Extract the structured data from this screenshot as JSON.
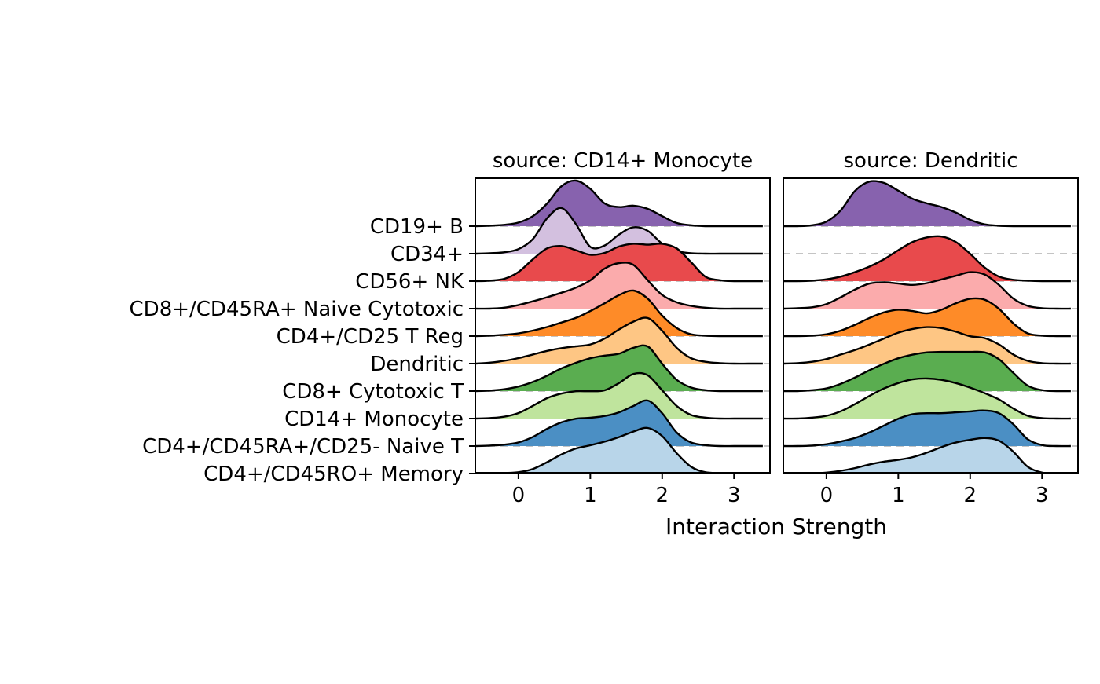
{
  "chart_data": {
    "type": "ridgeline",
    "xlabel": "Interaction Strength",
    "xlim": [
      -0.6,
      3.5
    ],
    "xticks": [
      0,
      1,
      2,
      3
    ],
    "categories": [
      "CD19+ B",
      "CD34+",
      "CD56+ NK",
      "CD8+/CD45RA+ Naive Cytotoxic",
      "CD4+/CD25 T Reg",
      "Dendritic",
      "CD8+ Cytotoxic T",
      "CD14+ Monocyte",
      "CD4+/CD45RA+/CD25- Naive T",
      "CD4+/CD45RO+ Memory"
    ],
    "colors": [
      "#8762ae",
      "#d3c0df",
      "#e84a4c",
      "#fbabac",
      "#fe8b28",
      "#fec684",
      "#5aad50",
      "#bfe49d",
      "#4b8fc4",
      "#b8d5e9"
    ],
    "panels": [
      {
        "title": "source: CD14+ Monocyte",
        "x": [
          -0.6,
          -0.4,
          -0.2,
          0.0,
          0.2,
          0.4,
          0.6,
          0.8,
          1.0,
          1.2,
          1.4,
          1.6,
          1.8,
          2.0,
          2.2,
          2.4,
          2.6,
          2.8,
          3.0,
          3.2,
          3.4
        ],
        "series": [
          {
            "category": "CD19+ B",
            "density": [
              0,
              0.01,
              0.03,
              0.08,
              0.22,
              0.5,
              0.88,
              1.0,
              0.82,
              0.5,
              0.42,
              0.45,
              0.38,
              0.22,
              0.07,
              0.02,
              0,
              0,
              0,
              0,
              0
            ]
          },
          {
            "category": "CD34+",
            "density": [
              0,
              0.01,
              0.03,
              0.1,
              0.32,
              0.78,
              1.0,
              0.65,
              0.15,
              0.18,
              0.42,
              0.58,
              0.5,
              0.22,
              0.06,
              0.01,
              0,
              0,
              0,
              0,
              0
            ]
          },
          {
            "category": "CD56+ NK",
            "density": [
              0,
              0.01,
              0.05,
              0.2,
              0.48,
              0.72,
              0.77,
              0.68,
              0.58,
              0.62,
              0.76,
              0.82,
              0.8,
              0.82,
              0.72,
              0.42,
              0.1,
              0.02,
              0,
              0,
              0
            ]
          },
          {
            "category": "CD8+/CD45RA+ Naive Cytotoxic",
            "density": [
              0,
              0,
              0.02,
              0.08,
              0.16,
              0.25,
              0.35,
              0.46,
              0.62,
              0.88,
              1.0,
              0.96,
              0.62,
              0.3,
              0.14,
              0.06,
              0.02,
              0,
              0,
              0,
              0
            ]
          },
          {
            "category": "CD4+/CD25 T Reg",
            "density": [
              0,
              0.01,
              0.03,
              0.06,
              0.12,
              0.2,
              0.3,
              0.4,
              0.55,
              0.72,
              0.9,
              1.0,
              0.82,
              0.45,
              0.18,
              0.04,
              0.01,
              0,
              0,
              0,
              0
            ]
          },
          {
            "category": "Dendritic",
            "density": [
              0,
              0.02,
              0.06,
              0.12,
              0.2,
              0.28,
              0.34,
              0.38,
              0.42,
              0.55,
              0.75,
              0.92,
              1.0,
              0.72,
              0.35,
              0.12,
              0.04,
              0.01,
              0,
              0,
              0
            ]
          },
          {
            "category": "CD8+ Cytotoxic T",
            "density": [
              0,
              0.01,
              0.04,
              0.1,
              0.2,
              0.34,
              0.5,
              0.62,
              0.72,
              0.78,
              0.82,
              0.95,
              0.98,
              0.6,
              0.25,
              0.08,
              0.02,
              0,
              0,
              0,
              0
            ]
          },
          {
            "category": "CD14+ Monocyte",
            "density": [
              0,
              0.01,
              0.04,
              0.12,
              0.28,
              0.45,
              0.55,
              0.6,
              0.6,
              0.62,
              0.78,
              0.98,
              0.95,
              0.62,
              0.28,
              0.08,
              0.02,
              0,
              0,
              0,
              0
            ]
          },
          {
            "category": "CD4+/CD45RA+/CD25- Naive T",
            "density": [
              0,
              0.01,
              0.03,
              0.08,
              0.2,
              0.38,
              0.52,
              0.6,
              0.62,
              0.66,
              0.74,
              0.88,
              1.0,
              0.72,
              0.3,
              0.08,
              0.02,
              0,
              0,
              0,
              0
            ]
          },
          {
            "category": "CD4+/CD45RO+ Memory",
            "density": [
              0,
              0,
              0.01,
              0.03,
              0.1,
              0.25,
              0.42,
              0.55,
              0.62,
              0.7,
              0.8,
              0.92,
              1.0,
              0.82,
              0.45,
              0.15,
              0.03,
              0.01,
              0,
              0,
              0
            ]
          }
        ]
      },
      {
        "title": "source: Dendritic",
        "x": [
          -0.6,
          -0.4,
          -0.2,
          0.0,
          0.2,
          0.4,
          0.6,
          0.8,
          1.0,
          1.2,
          1.4,
          1.6,
          1.8,
          2.0,
          2.2,
          2.4,
          2.6,
          2.8,
          3.0,
          3.2,
          3.4
        ],
        "series": [
          {
            "category": "CD19+ B",
            "density": [
              0,
              0,
              0.02,
              0.1,
              0.35,
              0.78,
              0.98,
              0.95,
              0.78,
              0.6,
              0.5,
              0.42,
              0.3,
              0.14,
              0.04,
              0.01,
              0,
              0,
              0,
              0,
              0
            ]
          },
          {
            "category": "CD34+",
            "density": null
          },
          {
            "category": "CD56+ NK",
            "density": [
              0,
              0,
              0.01,
              0.04,
              0.1,
              0.2,
              0.32,
              0.48,
              0.68,
              0.86,
              0.96,
              0.98,
              0.86,
              0.6,
              0.3,
              0.1,
              0.03,
              0.01,
              0,
              0,
              0
            ]
          },
          {
            "category": "CD8+/CD45RA+ Naive Cytotoxic",
            "density": [
              0,
              0.01,
              0.03,
              0.1,
              0.25,
              0.42,
              0.55,
              0.58,
              0.55,
              0.52,
              0.56,
              0.64,
              0.72,
              0.8,
              0.75,
              0.52,
              0.22,
              0.06,
              0.01,
              0,
              0
            ]
          },
          {
            "category": "CD4+/CD25 T Reg",
            "density": [
              0,
              0,
              0.01,
              0.04,
              0.12,
              0.25,
              0.4,
              0.52,
              0.58,
              0.55,
              0.5,
              0.58,
              0.72,
              0.82,
              0.8,
              0.6,
              0.28,
              0.06,
              0.01,
              0,
              0
            ]
          },
          {
            "category": "Dendritic",
            "density": [
              0,
              0.01,
              0.04,
              0.1,
              0.2,
              0.3,
              0.42,
              0.55,
              0.68,
              0.76,
              0.8,
              0.78,
              0.7,
              0.6,
              0.56,
              0.42,
              0.2,
              0.06,
              0.01,
              0,
              0
            ]
          },
          {
            "category": "CD8+ Cytotoxic T",
            "density": [
              0,
              0,
              0.02,
              0.06,
              0.16,
              0.3,
              0.46,
              0.6,
              0.72,
              0.8,
              0.85,
              0.86,
              0.86,
              0.86,
              0.85,
              0.7,
              0.4,
              0.12,
              0.02,
              0,
              0
            ]
          },
          {
            "category": "CD14+ Monocyte",
            "density": [
              0,
              0,
              0.02,
              0.06,
              0.16,
              0.32,
              0.5,
              0.66,
              0.78,
              0.86,
              0.88,
              0.85,
              0.78,
              0.68,
              0.56,
              0.42,
              0.22,
              0.06,
              0.01,
              0,
              0
            ]
          },
          {
            "category": "CD4+/CD45RA+/CD25- Naive T",
            "density": [
              0,
              0,
              0.01,
              0.04,
              0.1,
              0.18,
              0.3,
              0.45,
              0.6,
              0.7,
              0.72,
              0.72,
              0.74,
              0.76,
              0.78,
              0.72,
              0.48,
              0.15,
              0.02,
              0,
              0
            ]
          },
          {
            "category": "CD4+/CD45RO+ Memory",
            "density": [
              0,
              0,
              0,
              0.02,
              0.06,
              0.12,
              0.2,
              0.26,
              0.3,
              0.36,
              0.46,
              0.58,
              0.68,
              0.74,
              0.78,
              0.72,
              0.48,
              0.15,
              0.02,
              0,
              0
            ]
          }
        ]
      }
    ]
  }
}
